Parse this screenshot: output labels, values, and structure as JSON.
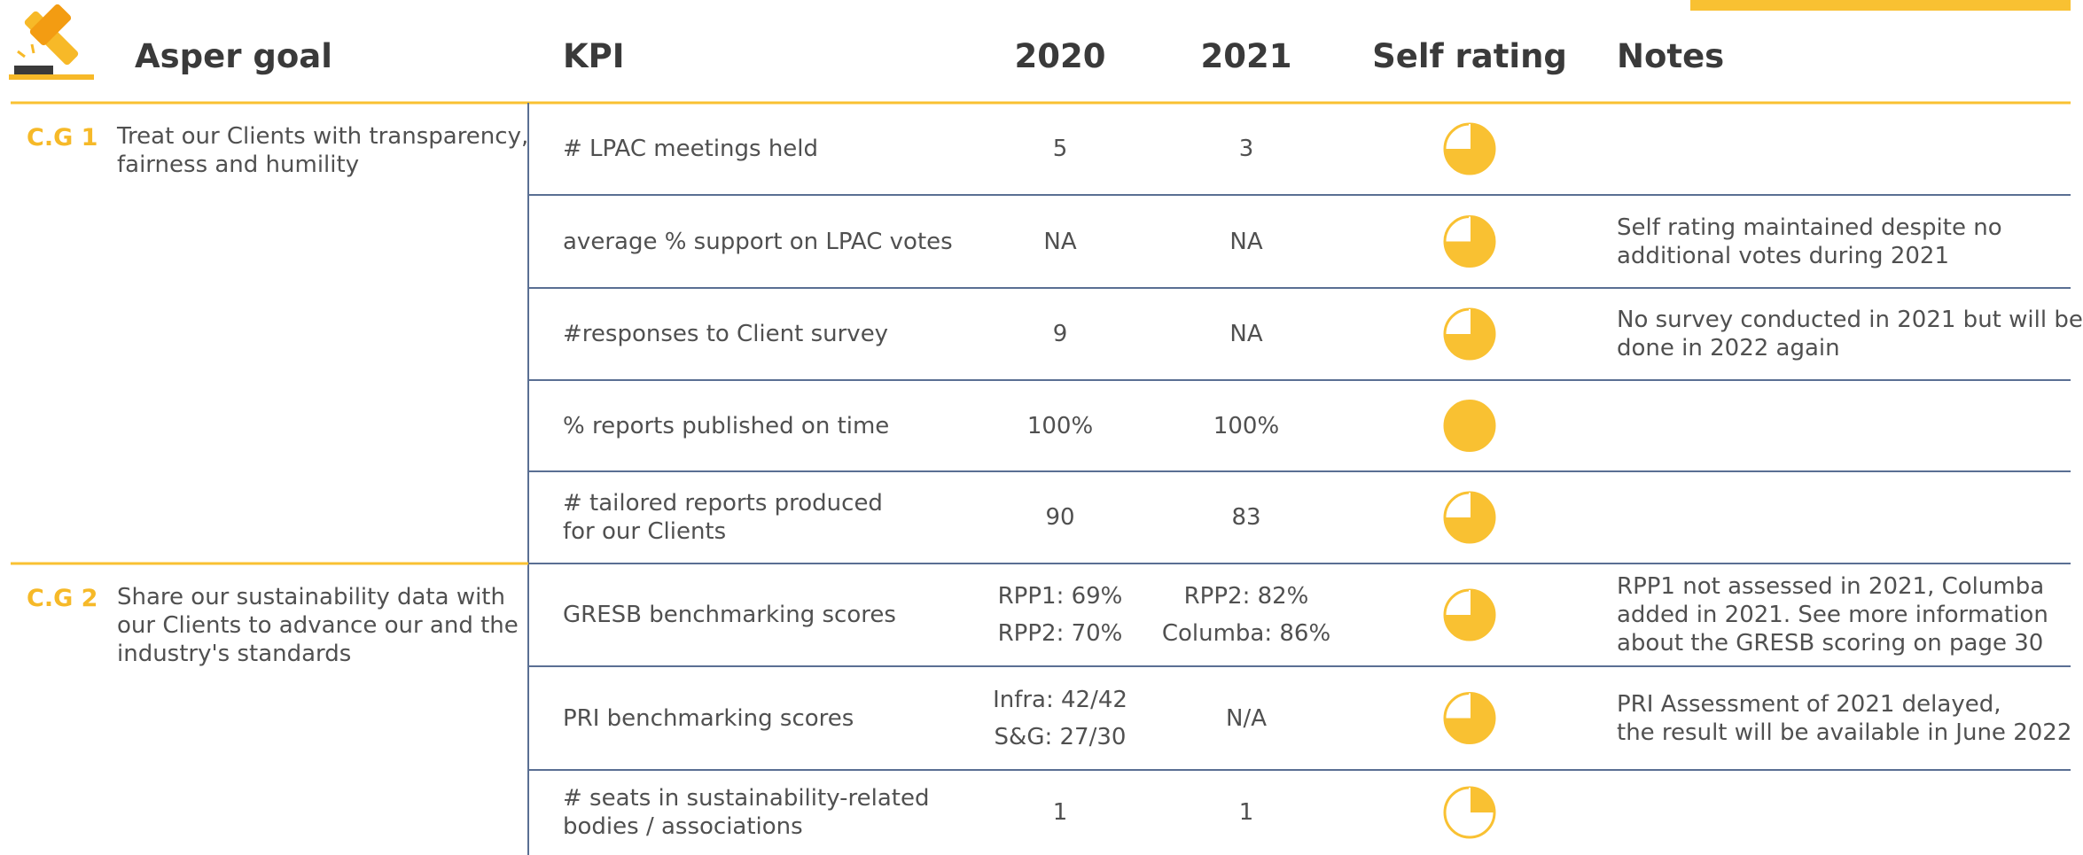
{
  "header": {
    "goal": "Asper goal",
    "kpi": "KPI",
    "y2020": "2020",
    "y2021": "2021",
    "rating": "Self rating",
    "notes": "Notes"
  },
  "groups": [
    {
      "id": "C.G 1",
      "goal": [
        "Treat our Clients with transparency,",
        "fairness and humility"
      ],
      "rows": [
        {
          "kpi": [
            "# LPAC meetings held"
          ],
          "v2020": [
            "5"
          ],
          "v2021": [
            "3"
          ],
          "rating": 0.75,
          "notes": []
        },
        {
          "kpi": [
            "average % support on LPAC votes"
          ],
          "v2020": [
            "NA"
          ],
          "v2021": [
            "NA"
          ],
          "rating": 0.75,
          "notes": [
            "Self rating maintained despite no",
            "additional votes during 2021"
          ]
        },
        {
          "kpi": [
            "#responses to Client survey"
          ],
          "v2020": [
            "9"
          ],
          "v2021": [
            "NA"
          ],
          "rating": 0.75,
          "notes": [
            "No survey conducted in 2021 but will be",
            "done in 2022 again"
          ]
        },
        {
          "kpi": [
            "% reports published on time"
          ],
          "v2020": [
            "100%"
          ],
          "v2021": [
            "100%"
          ],
          "rating": 1,
          "notes": []
        },
        {
          "kpi": [
            "# tailored reports produced",
            "for our Clients"
          ],
          "v2020": [
            "90"
          ],
          "v2021": [
            "83"
          ],
          "rating": 0.75,
          "notes": []
        }
      ]
    },
    {
      "id": "C.G 2",
      "goal": [
        "Share our sustainability data with",
        "our Clients to advance our and the",
        "industry's standards"
      ],
      "rows": [
        {
          "kpi": [
            "GRESB benchmarking scores"
          ],
          "v2020": [
            "RPP1: 69%",
            "RPP2: 70%"
          ],
          "v2021": [
            "RPP2: 82%",
            "Columba: 86%"
          ],
          "rating": 0.75,
          "notes": [
            "RPP1 not assessed in 2021, Columba",
            "added in 2021. See more information",
            "about the GRESB scoring on page 30"
          ]
        },
        {
          "kpi": [
            "PRI benchmarking scores"
          ],
          "v2020": [
            "Infra: 42/42",
            "S&G: 27/30"
          ],
          "v2021": [
            "N/A"
          ],
          "rating": 0.75,
          "notes": [
            "PRI Assessment of 2021 delayed,",
            "the result will be available in June 2022"
          ]
        },
        {
          "kpi": [
            "# seats in sustainability-related",
            "bodies / associations"
          ],
          "v2020": [
            "1"
          ],
          "v2021": [
            "1"
          ],
          "rating": 0.25,
          "notes": []
        }
      ]
    }
  ]
}
